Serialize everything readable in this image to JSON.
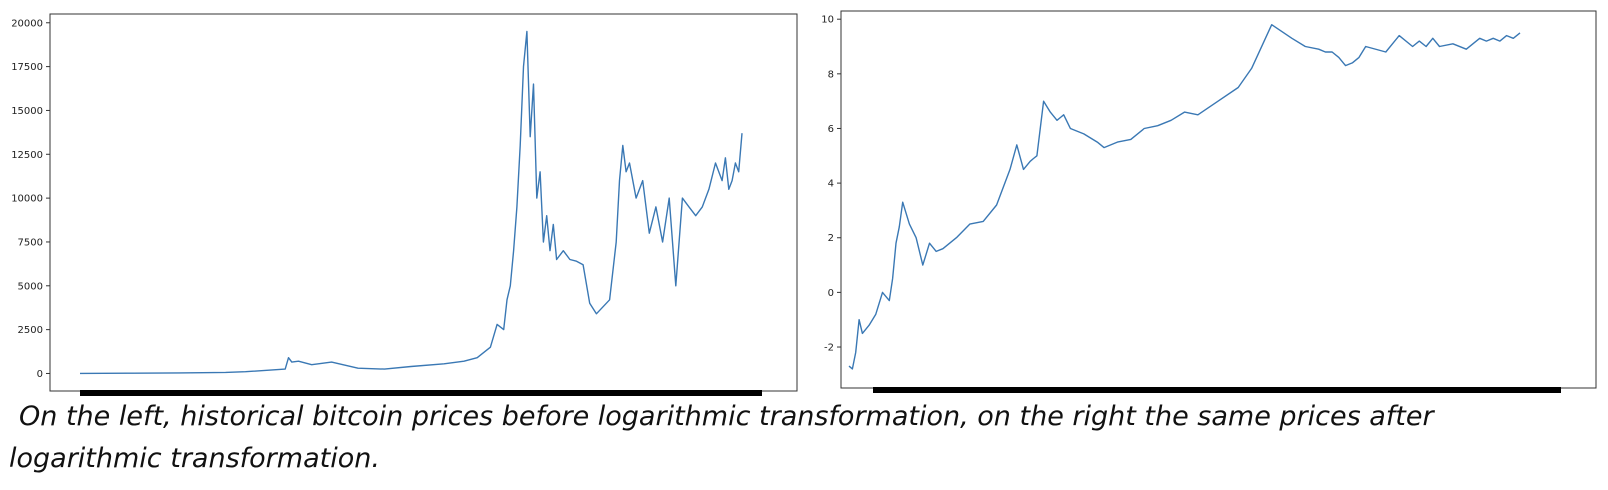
{
  "chart_data": [
    {
      "type": "line",
      "title": "",
      "xlabel": "",
      "ylabel": "",
      "ylim": [
        -1000,
        20500
      ],
      "yticks": [
        0,
        2500,
        5000,
        7500,
        10000,
        12500,
        15000,
        17500,
        20000
      ],
      "grid": false,
      "color": "#3a78b4",
      "series": [
        {
          "x": [
            0.0,
            0.08,
            0.15,
            0.22,
            0.25,
            0.31,
            0.315,
            0.32,
            0.33,
            0.35,
            0.38,
            0.42,
            0.46,
            0.5,
            0.55,
            0.58,
            0.6,
            0.62,
            0.63,
            0.64,
            0.645,
            0.65,
            0.655,
            0.66,
            0.665,
            0.67,
            0.675,
            0.68,
            0.685,
            0.69,
            0.695,
            0.7,
            0.705,
            0.71,
            0.715,
            0.72,
            0.73,
            0.74,
            0.75,
            0.76,
            0.77,
            0.78,
            0.79,
            0.8,
            0.81,
            0.815,
            0.82,
            0.825,
            0.83,
            0.84,
            0.85,
            0.86,
            0.87,
            0.88,
            0.89,
            0.9,
            0.91,
            0.92,
            0.93,
            0.94,
            0.95,
            0.96,
            0.97,
            0.975,
            0.98,
            0.985,
            0.99,
            0.995,
            1.0
          ],
          "y": [
            5,
            15,
            30,
            60,
            100,
            250,
            900,
            650,
            700,
            500,
            650,
            300,
            250,
            400,
            550,
            700,
            900,
            1500,
            2800,
            2500,
            4200,
            5000,
            7000,
            9500,
            13000,
            17500,
            19500,
            13500,
            16500,
            10000,
            11500,
            7500,
            9000,
            7000,
            8500,
            6500,
            7000,
            6500,
            6400,
            6200,
            4000,
            3400,
            3800,
            4200,
            7500,
            11000,
            13000,
            11500,
            12000,
            10000,
            11000,
            8000,
            9500,
            7500,
            10000,
            5000,
            10000,
            9500,
            9000,
            9500,
            10500,
            12000,
            11000,
            12300,
            10500,
            11000,
            12000,
            11500,
            13700
          ]
        }
      ]
    },
    {
      "type": "line",
      "title": "",
      "xlabel": "",
      "ylabel": "",
      "ylim": [
        -3.5,
        10.3
      ],
      "yticks": [
        -2,
        0,
        2,
        4,
        6,
        8,
        10
      ],
      "grid": false,
      "color": "#3a78b4",
      "series": [
        {
          "x": [
            0.0,
            0.005,
            0.01,
            0.015,
            0.02,
            0.03,
            0.04,
            0.05,
            0.06,
            0.065,
            0.07,
            0.075,
            0.08,
            0.09,
            0.1,
            0.11,
            0.12,
            0.13,
            0.14,
            0.16,
            0.18,
            0.2,
            0.22,
            0.24,
            0.25,
            0.26,
            0.27,
            0.275,
            0.28,
            0.29,
            0.3,
            0.31,
            0.315,
            0.32,
            0.33,
            0.35,
            0.37,
            0.38,
            0.4,
            0.42,
            0.44,
            0.46,
            0.48,
            0.5,
            0.52,
            0.55,
            0.58,
            0.6,
            0.63,
            0.66,
            0.68,
            0.7,
            0.71,
            0.72,
            0.73,
            0.74,
            0.75,
            0.76,
            0.77,
            0.8,
            0.82,
            0.84,
            0.85,
            0.86,
            0.87,
            0.88,
            0.9,
            0.92,
            0.94,
            0.95,
            0.96,
            0.97,
            0.98,
            0.99,
            1.0
          ],
          "y": [
            -2.7,
            -2.8,
            -2.2,
            -1.0,
            -1.5,
            -1.2,
            -0.8,
            0.0,
            -0.3,
            0.5,
            1.8,
            2.4,
            3.3,
            2.5,
            2.0,
            1.0,
            1.8,
            1.5,
            1.6,
            2.0,
            2.5,
            2.6,
            3.2,
            4.5,
            5.4,
            4.5,
            4.8,
            4.9,
            5.0,
            7.0,
            6.6,
            6.3,
            6.4,
            6.5,
            6.0,
            5.8,
            5.5,
            5.3,
            5.5,
            5.6,
            6.0,
            6.1,
            6.3,
            6.6,
            6.5,
            7.0,
            7.5,
            8.2,
            9.8,
            9.3,
            9.0,
            8.9,
            8.8,
            8.8,
            8.6,
            8.3,
            8.4,
            8.6,
            9.0,
            8.8,
            9.4,
            9.0,
            9.2,
            9.0,
            9.3,
            9.0,
            9.1,
            8.9,
            9.3,
            9.2,
            9.3,
            9.2,
            9.4,
            9.3,
            9.5
          ]
        }
      ]
    }
  ],
  "caption": {
    "line1": "On the left, historical bitcoin prices before logarithmic transformation, on the right the same prices after",
    "line2": "logarithmic transformation."
  }
}
